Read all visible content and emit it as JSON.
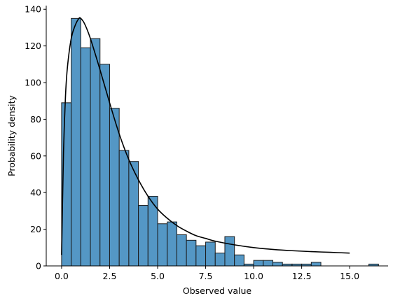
{
  "chart_data": {
    "type": "bar",
    "title": "",
    "xlabel": "Observed value",
    "ylabel": "Probability density",
    "xlim": [
      -0.8,
      17.0
    ],
    "ylim": [
      0,
      142
    ],
    "xticks": [
      0.0,
      2.5,
      5.0,
      7.5,
      10.0,
      12.5,
      15.0
    ],
    "xtick_labels": [
      "0.0",
      "2.5",
      "5.0",
      "7.5",
      "10.0",
      "12.5",
      "15.0"
    ],
    "yticks": [
      0,
      20,
      40,
      60,
      80,
      100,
      120,
      140
    ],
    "ytick_labels": [
      "0",
      "20",
      "40",
      "60",
      "80",
      "100",
      "120",
      "140"
    ],
    "grid": false,
    "bin_width": 0.5,
    "bins": [
      {
        "x0": 0.0,
        "value": 89
      },
      {
        "x0": 0.5,
        "value": 135
      },
      {
        "x0": 1.0,
        "value": 119
      },
      {
        "x0": 1.5,
        "value": 124
      },
      {
        "x0": 2.0,
        "value": 110
      },
      {
        "x0": 2.5,
        "value": 86
      },
      {
        "x0": 3.0,
        "value": 63
      },
      {
        "x0": 3.5,
        "value": 57
      },
      {
        "x0": 4.0,
        "value": 33
      },
      {
        "x0": 4.5,
        "value": 38
      },
      {
        "x0": 5.0,
        "value": 23
      },
      {
        "x0": 5.5,
        "value": 24
      },
      {
        "x0": 6.0,
        "value": 17
      },
      {
        "x0": 6.5,
        "value": 14
      },
      {
        "x0": 7.0,
        "value": 11
      },
      {
        "x0": 7.5,
        "value": 13
      },
      {
        "x0": 8.0,
        "value": 7
      },
      {
        "x0": 8.5,
        "value": 16
      },
      {
        "x0": 9.0,
        "value": 6
      },
      {
        "x0": 9.5,
        "value": 1
      },
      {
        "x0": 10.0,
        "value": 3
      },
      {
        "x0": 10.5,
        "value": 3
      },
      {
        "x0": 11.0,
        "value": 2
      },
      {
        "x0": 11.5,
        "value": 1
      },
      {
        "x0": 12.0,
        "value": 1
      },
      {
        "x0": 12.5,
        "value": 1
      },
      {
        "x0": 13.0,
        "value": 2
      },
      {
        "x0": 16.0,
        "value": 1
      }
    ],
    "curve": {
      "x": [
        0.0,
        0.1,
        0.2,
        0.3,
        0.5,
        0.7,
        0.9,
        1.0,
        1.2,
        1.5,
        2.0,
        2.5,
        3.0,
        3.5,
        4.0,
        4.5,
        5.0,
        5.5,
        6.0,
        6.5,
        7.0,
        7.5,
        8.0,
        9.0,
        10.0,
        11.0,
        12.0,
        13.0,
        14.0,
        15.0
      ],
      "y": [
        6,
        62,
        92,
        108,
        124,
        131,
        135,
        135,
        132,
        124,
        107,
        89,
        72,
        58,
        47,
        38,
        31,
        26,
        22,
        19,
        16.5,
        15,
        13.5,
        11.5,
        10,
        9,
        8.3,
        7.8,
        7.4,
        7
      ]
    },
    "colors": {
      "bar_fill": "#5497c5",
      "bar_edge": "#1b1b1b",
      "curve": "#000000"
    }
  }
}
